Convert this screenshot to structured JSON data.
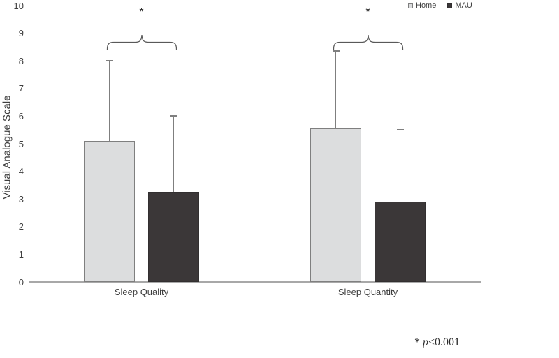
{
  "chart_data": {
    "type": "bar",
    "title": "",
    "ylabel": "Visual Analogue Scale",
    "xlabel": "",
    "ylim": [
      0,
      10
    ],
    "ytick_step": 1,
    "yticks": [
      0,
      1,
      2,
      3,
      4,
      5,
      6,
      7,
      8,
      9,
      10
    ],
    "categories": [
      "Sleep Quality",
      "Sleep Quantity"
    ],
    "series": [
      {
        "name": "Home",
        "values": [
          5.1,
          5.55
        ],
        "error_upper": [
          2.9,
          2.8
        ],
        "fill": "#dcddde",
        "border": "#7f7f7f"
      },
      {
        "name": "MAU",
        "values": [
          3.25,
          2.9
        ],
        "error_upper": [
          2.75,
          2.6
        ],
        "fill": "#3b3738",
        "border": "#322f30"
      }
    ],
    "significance_markers": [
      {
        "category": "Sleep Quality",
        "label": "*"
      },
      {
        "category": "Sleep Quantity",
        "label": "*"
      }
    ],
    "legend_position": "top-right",
    "grid": false,
    "footnote": "* p<0.001"
  },
  "note": {
    "marker": "*",
    "p_symbol": "p",
    "p_text": "<0.001"
  },
  "colors": {
    "error_bar": "#7f7f7f",
    "y_axis_line": "#9c9c9c",
    "x_axis_line": "#a8a8a8",
    "bracket": "#595959",
    "text": "#3e3e3e"
  }
}
